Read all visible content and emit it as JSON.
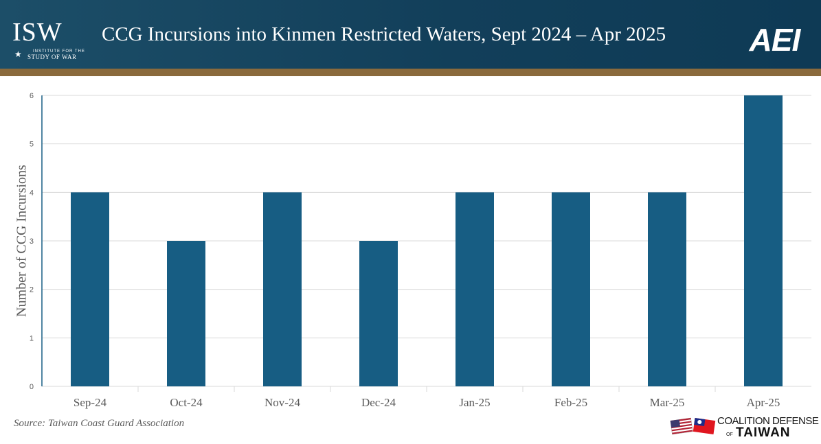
{
  "header": {
    "title": "CCG Incursions into Kinmen Restricted Waters, Sept 2024 – Apr 2025",
    "left_logo": {
      "mark": "ISW",
      "line1": "INSTITUTE FOR THE",
      "line2": "STUDY OF WAR"
    },
    "right_logo": {
      "mark": "AEI"
    }
  },
  "footer": {
    "source": "Source: Taiwan Coast Guard Association",
    "logo": {
      "line1": "COALITION DEFENSE",
      "of": "OF",
      "line2": "TAIWAN"
    }
  },
  "colors": {
    "header_bg": "#123f5a",
    "gold_bar": "#8a6a3c",
    "bar": "#175d83",
    "grid": "#d9d9d9",
    "axis_text": "#595959"
  },
  "chart_data": {
    "type": "bar",
    "categories": [
      "Sep-24",
      "Oct-24",
      "Nov-24",
      "Dec-24",
      "Jan-25",
      "Feb-25",
      "Mar-25",
      "Apr-25"
    ],
    "values": [
      4,
      3,
      4,
      3,
      4,
      4,
      4,
      6
    ],
    "title": "CCG Incursions into Kinmen Restricted Waters, Sept 2024 – Apr 2025",
    "xlabel": "",
    "ylabel": "Number of CCG Incursions",
    "ylim": [
      0,
      6
    ],
    "yticks": [
      0,
      1,
      2,
      3,
      4,
      5,
      6
    ],
    "grid": true,
    "legend": "none"
  }
}
